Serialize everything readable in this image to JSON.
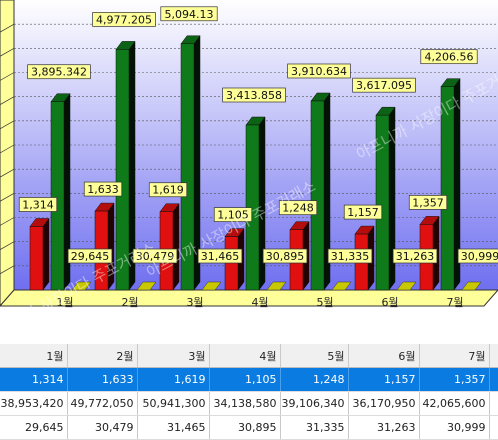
{
  "chart_data": {
    "type": "bar",
    "categories": [
      "1월",
      "2월",
      "3월",
      "4월",
      "5월",
      "6월",
      "7월"
    ],
    "series": [
      {
        "values": [
          1314,
          1633,
          1619,
          1105,
          1248,
          1157,
          1357
        ],
        "labels": [
          "1,314",
          "1,633",
          "1,619",
          "1,105",
          "1,248",
          "1,157",
          "1,357"
        ],
        "color": "#e01010"
      },
      {
        "values": [
          3895.342,
          4977.205,
          5094.13,
          3413.858,
          3910.634,
          3617.095,
          4206.56
        ],
        "labels": [
          "3,895.342",
          "4,977.205",
          "5,094.13",
          "3,413.858",
          "3,910.634",
          "3,617.095",
          "4,206.56"
        ],
        "color": "#0f7a1a"
      },
      {
        "values": [
          29645,
          30479,
          31465,
          30895,
          31335,
          31263,
          30999
        ],
        "labels": [
          "29,645",
          "30,479",
          "31,465",
          "30,895",
          "31,335",
          "31,263",
          "30,999"
        ],
        "color": "#c8c800"
      }
    ],
    "grid": true,
    "legend": "none",
    "watermark": "아프니까 사장이다 주포거래소"
  },
  "table": {
    "header": [
      "1월",
      "2월",
      "3월",
      "4월",
      "5월",
      "6월",
      "7월"
    ],
    "rows": [
      [
        "1,314",
        "1,633",
        "1,619",
        "1,105",
        "1,248",
        "1,157",
        "1,357"
      ],
      [
        "38,953,420",
        "49,772,050",
        "50,941,300",
        "34,138,580",
        "39,106,340",
        "36,170,950",
        "42,065,600"
      ],
      [
        "29,645",
        "30,479",
        "31,465",
        "30,895",
        "31,335",
        "31,263",
        "30,999"
      ]
    ]
  }
}
